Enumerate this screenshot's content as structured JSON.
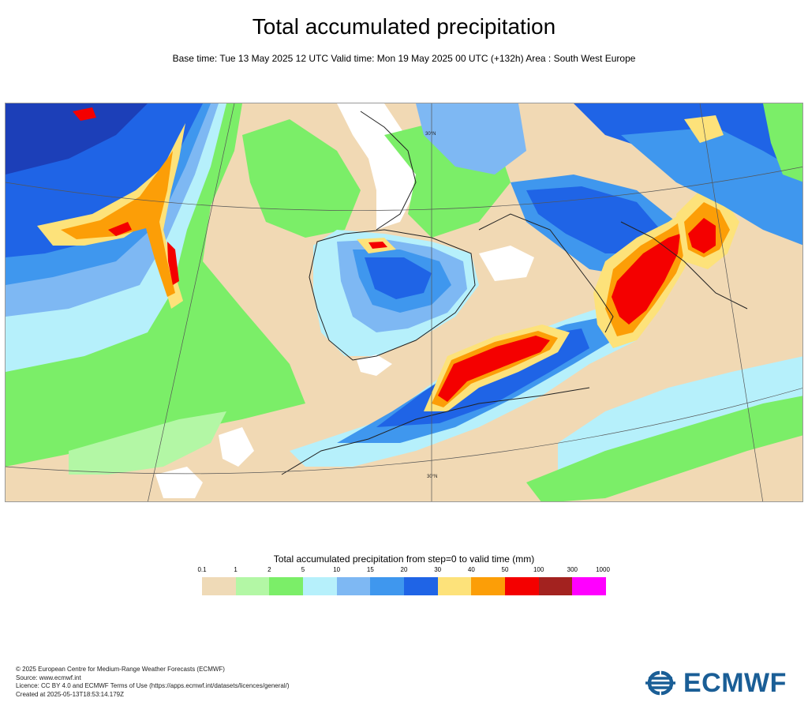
{
  "header": {
    "title": "Total accumulated precipitation",
    "subtitle": "Base time: Tue 13 May 2025 12 UTC Valid time: Mon 19 May 2025 00 UTC (+132h) Area : South West Europe"
  },
  "map": {
    "area": "South West Europe",
    "latitude_labels": [
      "30°N",
      "30°N"
    ]
  },
  "legend": {
    "title": "Total accumulated precipitation from step=0 to valid time (mm)",
    "levels": [
      "0.1",
      "1",
      "2",
      "5",
      "10",
      "15",
      "20",
      "30",
      "40",
      "50",
      "100",
      "300",
      "1000"
    ],
    "colors": [
      "#efdab7",
      "#b3f7a5",
      "#7bee68",
      "#b6f0fb",
      "#7eb8f3",
      "#3f97ee",
      "#1f64e6",
      "#fde27a",
      "#fc9e07",
      "#f40000",
      "#a3221f",
      "#ff00ff"
    ]
  },
  "footer": {
    "lines": [
      "© 2025 European Centre for Medium-Range Weather Forecasts (ECMWF)",
      "Source: www.ecmwf.int",
      "Licence: CC BY 4.0 and ECMWF Terms of Use (https://apps.ecmwf.int/datasets/licences/general/)",
      "Created at 2025-05-13T18:53:14.179Z"
    ]
  },
  "logo": {
    "text": "ECMWF",
    "color": "#1a5e96",
    "icon": "ecmwf-logo-icon"
  }
}
